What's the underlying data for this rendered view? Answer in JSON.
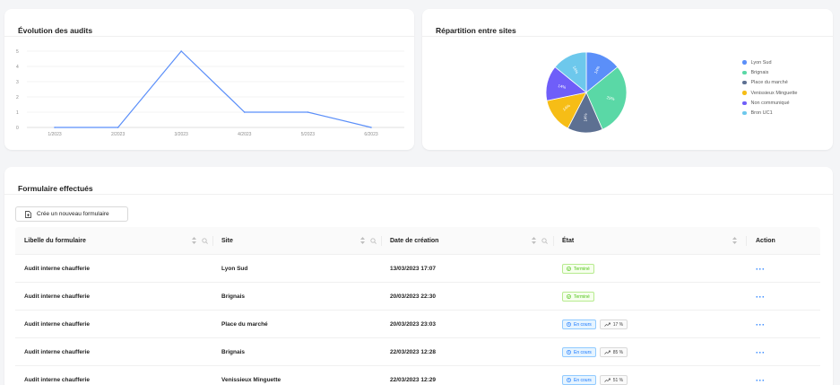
{
  "line_card": {
    "title": "Évolution des audits"
  },
  "pie_card": {
    "title": "Répartition entre sites"
  },
  "table_card": {
    "title": "Formulaire effectués",
    "new_button": "Crée un nouveau formulaire",
    "columns": [
      "Libelle du formulaire",
      "Site",
      "Date de création",
      "État",
      "Action"
    ],
    "rows": [
      {
        "libelle": "Audit interne chaufferie",
        "site": "Lyon Sud",
        "date": "13/03/2023 17:07",
        "state": "Terminé",
        "progress": null,
        "action": "···"
      },
      {
        "libelle": "Audit interne chaufferie",
        "site": "Brignais",
        "date": "20/03/2023 22:30",
        "state": "Terminé",
        "progress": null,
        "action": "···"
      },
      {
        "libelle": "Audit interne chaufferie",
        "site": "Place du marché",
        "date": "20/03/2023 23:03",
        "state": "En cours",
        "progress": "17 %",
        "action": "···"
      },
      {
        "libelle": "Audit interne chaufferie",
        "site": "Brignais",
        "date": "22/03/2023 12:28",
        "state": "En cours",
        "progress": "85 %",
        "action": "···"
      },
      {
        "libelle": "Audit interne chaufferie",
        "site": "Venissieux Minguette",
        "date": "22/03/2023 12:29",
        "state": "En cours",
        "progress": "51 %",
        "action": "···"
      }
    ]
  },
  "colors": {
    "line": "#5b8ff9",
    "done": "#52c41a",
    "progress": "#1677ff"
  },
  "chart_data": [
    {
      "type": "line",
      "title": "Évolution des audits",
      "categories": [
        "1/2023",
        "2/2023",
        "3/2023",
        "4/2023",
        "5/2023",
        "6/2023"
      ],
      "values": [
        0,
        0,
        5,
        1,
        1,
        0
      ],
      "ylim": [
        0,
        5
      ],
      "yticks": [
        0,
        1,
        2,
        3,
        4,
        5
      ],
      "grid": true
    },
    {
      "type": "pie",
      "title": "Répartition entre sites",
      "legend_position": "right",
      "slices": [
        {
          "name": "Lyon Sud",
          "value": 14,
          "label": "14%",
          "color": "#5b8ff9"
        },
        {
          "name": "Brignais",
          "value": 29,
          "label": "29%",
          "color": "#5ad8a6"
        },
        {
          "name": "Place du marché",
          "value": 14,
          "label": "14%",
          "color": "#5d7092"
        },
        {
          "name": "Venissieux Minguette",
          "value": 14,
          "label": "14%",
          "color": "#f6bd16"
        },
        {
          "name": "Non communiqué",
          "value": 14,
          "label": "14%",
          "color": "#6f5ef9"
        },
        {
          "name": "Bron UC1",
          "value": 14,
          "label": "14%",
          "color": "#6dc8ec"
        }
      ]
    }
  ]
}
